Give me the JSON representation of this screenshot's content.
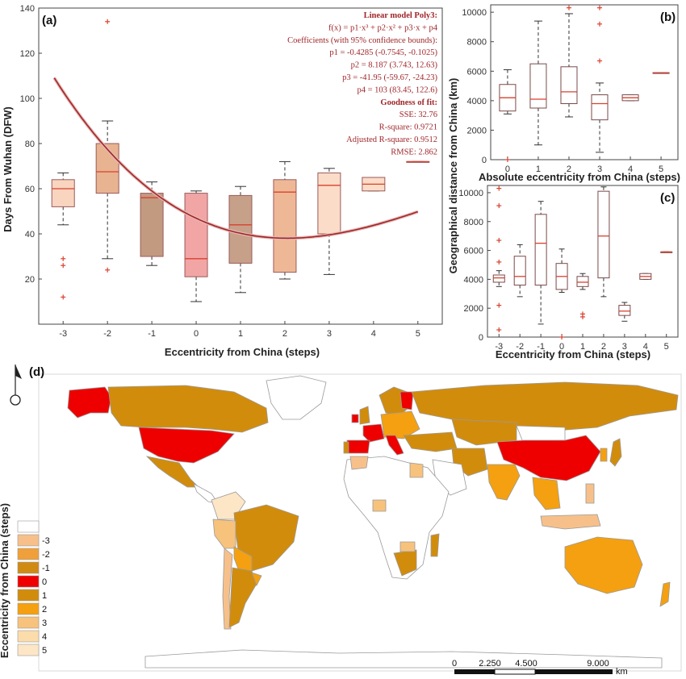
{
  "chart_data": [
    {
      "id": "a",
      "panel_label": "(a)",
      "type": "box",
      "xlabel": "Eccentricity from China (steps)",
      "ylabel": "Days From Wuhan (DFW)",
      "categories": [
        "-3",
        "-2",
        "-1",
        "0",
        "1",
        "2",
        "3",
        "4",
        "5"
      ],
      "ylim": [
        0,
        140
      ],
      "yticks": [
        20,
        40,
        60,
        80,
        100,
        120,
        140
      ],
      "boxes": [
        {
          "x": -3,
          "q1": 52,
          "median": 60,
          "q3": 64,
          "lo": 44,
          "hi": 67,
          "color": "#f9d5bf",
          "outliers": [
            29,
            26,
            12
          ]
        },
        {
          "x": -2,
          "q1": 58,
          "median": 67.5,
          "q3": 80,
          "lo": 29,
          "hi": 90,
          "color": "#e8b391",
          "outliers": [
            24,
            134
          ]
        },
        {
          "x": -1,
          "q1": 30,
          "median": 56,
          "q3": 58,
          "lo": 26,
          "hi": 63,
          "color": "#c29a80",
          "outliers": []
        },
        {
          "x": 0,
          "q1": 21,
          "median": 29,
          "q3": 58,
          "lo": 10,
          "hi": 59,
          "color": "#f2a5a5",
          "outliers": []
        },
        {
          "x": 1,
          "q1": 27,
          "median": 44,
          "q3": 57,
          "lo": 14,
          "hi": 61,
          "color": "#c7a08a",
          "outliers": []
        },
        {
          "x": 2,
          "q1": 23,
          "median": 58.5,
          "q3": 64,
          "lo": 20,
          "hi": 72,
          "color": "#eeb896",
          "outliers": []
        },
        {
          "x": 3,
          "q1": 40,
          "median": 61.5,
          "q3": 67,
          "lo": 22,
          "hi": 69,
          "color": "#fbdcc8",
          "outliers": []
        },
        {
          "x": 4,
          "q1": 59,
          "median": 62,
          "q3": 65,
          "lo": 59,
          "hi": 65,
          "color": "#fbdcc8",
          "outliers": []
        },
        {
          "x": 5,
          "q1": 72,
          "median": 72,
          "q3": 72,
          "lo": 72,
          "hi": 72,
          "color": "#fbdcc8",
          "outliers": []
        }
      ],
      "fit": {
        "p1": -0.4285,
        "p2": 8.187,
        "p3": -41.95,
        "p4": 103
      },
      "fit_text": [
        {
          "t": "Linear model Poly3:",
          "bold": true
        },
        {
          "t": "f(x) = p1·x³ + p2·x² + p3·x + p4",
          "bold": false
        },
        {
          "t": "Coefficients (with 95% confidence bounds):",
          "bold": false
        },
        {
          "t": "p1 = -0.4285  (-0.7545, -0.1025)",
          "bold": false
        },
        {
          "t": "p2 = 8.187  (3.743, 12.63)",
          "bold": false
        },
        {
          "t": "p3 = -41.95  (-59.67, -24.23)",
          "bold": false
        },
        {
          "t": "p4 = 103  (83.45, 122.6)",
          "bold": false
        },
        {
          "t": "Goodness of fit:",
          "bold": true
        },
        {
          "t": "SSE: 32.76",
          "bold": false
        },
        {
          "t": "R-square: 0.9721",
          "bold": false
        },
        {
          "t": "Adjusted R-square: 0.9512",
          "bold": false
        },
        {
          "t": "RMSE: 2.862",
          "bold": false
        }
      ]
    },
    {
      "id": "b",
      "panel_label": "(b)",
      "type": "box",
      "xlabel": "Absolute eccentricity from China (steps)",
      "ylabel": "",
      "categories": [
        "0",
        "1",
        "2",
        "3",
        "4",
        "5"
      ],
      "ylim": [
        0,
        10500
      ],
      "yticks": [
        0,
        2000,
        4000,
        6000,
        8000,
        10000
      ],
      "boxes": [
        {
          "x": 0,
          "q1": 3300,
          "median": 4200,
          "q3": 5100,
          "lo": 3100,
          "hi": 6100,
          "outliers": [
            0
          ]
        },
        {
          "x": 1,
          "q1": 3500,
          "median": 4100,
          "q3": 6500,
          "lo": 1000,
          "hi": 9400,
          "outliers": []
        },
        {
          "x": 2,
          "q1": 3800,
          "median": 4600,
          "q3": 6300,
          "lo": 2900,
          "hi": 9900,
          "outliers": [
            10300
          ]
        },
        {
          "x": 3,
          "q1": 2700,
          "median": 3800,
          "q3": 4400,
          "lo": 500,
          "hi": 5200,
          "outliers": [
            10300,
            9200,
            6700
          ]
        },
        {
          "x": 4,
          "q1": 4000,
          "median": 4200,
          "q3": 4400,
          "lo": 4000,
          "hi": 4400,
          "outliers": []
        },
        {
          "x": 5,
          "q1": 5900,
          "median": 5900,
          "q3": 5900,
          "lo": 5900,
          "hi": 5900,
          "outliers": []
        }
      ]
    },
    {
      "id": "c",
      "panel_label": "(c)",
      "type": "box",
      "xlabel": "Eccentricity from China (steps)",
      "ylabel": "",
      "categories": [
        "-3",
        "-2",
        "-1",
        "0",
        "1",
        "2",
        "3",
        "4",
        "5"
      ],
      "ylim": [
        0,
        10500
      ],
      "yticks": [
        0,
        2000,
        4000,
        6000,
        8000,
        10000
      ],
      "boxes": [
        {
          "x": -3,
          "q1": 3800,
          "median": 4100,
          "q3": 4300,
          "lo": 3500,
          "hi": 4600,
          "outliers": [
            10300,
            9100,
            6700,
            5200,
            2200,
            500
          ]
        },
        {
          "x": -2,
          "q1": 3600,
          "median": 4200,
          "q3": 5600,
          "lo": 2800,
          "hi": 6400,
          "outliers": []
        },
        {
          "x": -1,
          "q1": 3600,
          "median": 6500,
          "q3": 8500,
          "lo": 900,
          "hi": 9400,
          "outliers": []
        },
        {
          "x": 0,
          "q1": 3300,
          "median": 4200,
          "q3": 5100,
          "lo": 3100,
          "hi": 6100,
          "outliers": [
            0
          ]
        },
        {
          "x": 1,
          "q1": 3500,
          "median": 3800,
          "q3": 4200,
          "lo": 3300,
          "hi": 4400,
          "outliers": [
            1600,
            1400
          ]
        },
        {
          "x": 2,
          "q1": 4100,
          "median": 7000,
          "q3": 10100,
          "lo": 2800,
          "hi": 10400,
          "outliers": []
        },
        {
          "x": 3,
          "q1": 1500,
          "median": 1800,
          "q3": 2200,
          "lo": 1100,
          "hi": 2400,
          "outliers": []
        },
        {
          "x": 4,
          "q1": 4000,
          "median": 4200,
          "q3": 4400,
          "lo": 4000,
          "hi": 4400,
          "outliers": []
        },
        {
          "x": 5,
          "q1": 5900,
          "median": 5900,
          "q3": 5900,
          "lo": 5900,
          "hi": 5900,
          "outliers": []
        }
      ]
    }
  ],
  "shared": {
    "bc_ylabel": "Geographical distance from China (km)"
  },
  "map": {
    "panel_label": "(d)",
    "legend_title": "Eccentricity from China (steps)",
    "legend_items": [
      {
        "label": "",
        "color": "#ffffff"
      },
      {
        "label": "-3",
        "color": "#f7c08a"
      },
      {
        "label": "-2",
        "color": "#f0a03a"
      },
      {
        "label": "-1",
        "color": "#d08a14"
      },
      {
        "label": "0",
        "color": "#ee0000"
      },
      {
        "label": "1",
        "color": "#d28c0c"
      },
      {
        "label": "2",
        "color": "#f4a010"
      },
      {
        "label": "3",
        "color": "#f7c27c"
      },
      {
        "label": "4",
        "color": "#fbdcaa"
      },
      {
        "label": "5",
        "color": "#fce6c6"
      }
    ],
    "scale_labels": [
      "0",
      "2.250",
      "4.500",
      "9.000"
    ],
    "scale_unit": "km"
  },
  "colors": {
    "box_line": "#9a5a5a",
    "median": "#d9412e",
    "outlier": "#d9412e",
    "fit_line": "#a0262a",
    "panel_bc_box": "#7a4a4a"
  }
}
